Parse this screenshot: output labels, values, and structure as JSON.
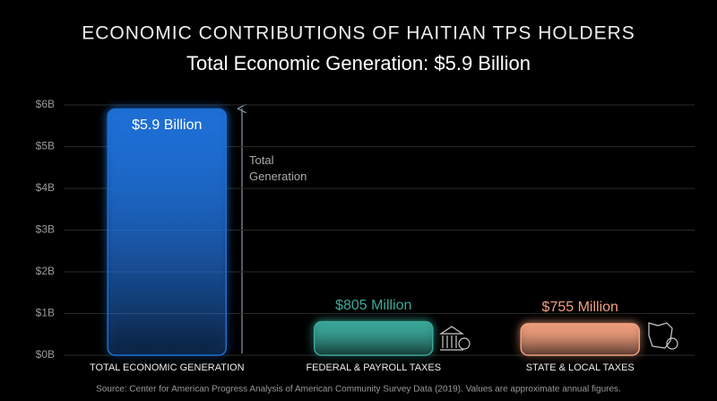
{
  "chart_data": {
    "type": "bar",
    "title": "ECONOMIC CONTRIBUTIONS OF HAITIAN TPS HOLDERS",
    "subtitle": "Total Economic Generation: $5.9 Billion",
    "categories": [
      "TOTAL ECONOMIC GENERATION",
      "FEDERAL & PAYROLL TAXES",
      "STATE & LOCAL TAXES"
    ],
    "values": [
      5.9,
      0.805,
      0.755
    ],
    "value_labels": [
      "$5.9 Billion",
      "$805 Million",
      "$755 Million"
    ],
    "colors": [
      "#1f6fd6",
      "#3aa899",
      "#f2a07e"
    ],
    "ylim": [
      0,
      6
    ],
    "yticks": [
      {
        "value": 0,
        "label": "$0B"
      },
      {
        "value": 1,
        "label": "$1B"
      },
      {
        "value": 2,
        "label": "$2B"
      },
      {
        "value": 3,
        "label": "$3B"
      },
      {
        "value": 4,
        "label": "$4B"
      },
      {
        "value": 5,
        "label": "$5B"
      },
      {
        "value": 6,
        "label": "$6B"
      }
    ],
    "grid": true,
    "annotation": "Total Generation",
    "source": "Source: Center for American Progress Analysis of American Community Survey Data (2019). Values are approximate annual figures."
  }
}
